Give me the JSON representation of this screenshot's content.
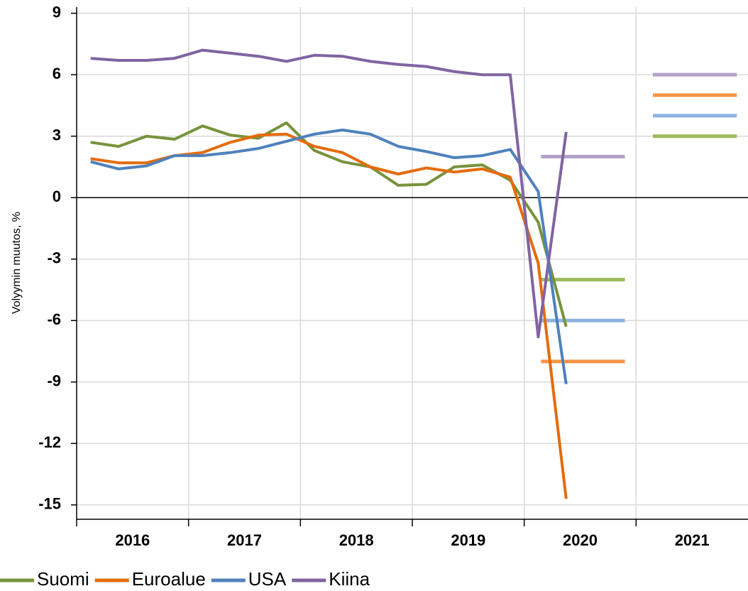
{
  "chart_data": {
    "type": "line",
    "ylabel": "Volyymin muutos, %",
    "x": [
      2016.125,
      2016.375,
      2016.625,
      2016.875,
      2017.125,
      2017.375,
      2017.625,
      2017.875,
      2018.125,
      2018.375,
      2018.625,
      2018.875,
      2019.125,
      2019.375,
      2019.625,
      2019.875,
      2020.125,
      2020.375
    ],
    "xlim": [
      2016,
      2022
    ],
    "xticks": [
      2016,
      2017,
      2018,
      2019,
      2020,
      2021
    ],
    "ylim": [
      -15.7,
      9.3
    ],
    "yticks": [
      -15,
      -12,
      -9,
      -6,
      -3,
      0,
      3,
      6,
      9
    ],
    "grid": true,
    "legend": "bottom",
    "forecast_x": [
      2020,
      2021
    ],
    "series": [
      {
        "name": "Suomi",
        "color": "#77933c",
        "forecast_color": "#9bbb59",
        "values": [
          2.7,
          2.5,
          3.0,
          2.85,
          3.5,
          3.05,
          2.9,
          3.65,
          2.3,
          1.75,
          1.5,
          0.6,
          0.65,
          1.5,
          1.6,
          0.85,
          -1.2,
          -6.3
        ],
        "forecast": [
          -4,
          3
        ]
      },
      {
        "name": "Euroalue",
        "color": "#e46c0a",
        "forecast_color": "#f79646",
        "values": [
          1.9,
          1.7,
          1.7,
          2.05,
          2.2,
          2.7,
          3.05,
          3.1,
          2.5,
          2.2,
          1.5,
          1.15,
          1.45,
          1.25,
          1.4,
          1.0,
          -3.2,
          -14.7
        ],
        "forecast": [
          -8,
          5
        ]
      },
      {
        "name": "USA",
        "color": "#4f81bd",
        "forecast_color": "#8db3e2",
        "values": [
          1.75,
          1.4,
          1.55,
          2.05,
          2.05,
          2.2,
          2.4,
          2.75,
          3.1,
          3.3,
          3.1,
          2.5,
          2.25,
          1.95,
          2.05,
          2.35,
          0.3,
          -9.1
        ],
        "forecast": [
          -6,
          4
        ]
      },
      {
        "name": "Kiina",
        "color": "#8064a2",
        "forecast_color": "#b3a2c7",
        "values": [
          6.8,
          6.7,
          6.7,
          6.8,
          7.2,
          7.05,
          6.9,
          6.65,
          6.95,
          6.9,
          6.65,
          6.5,
          6.4,
          6.15,
          6.0,
          6.0,
          -6.8,
          3.2
        ],
        "forecast": [
          2,
          6
        ]
      }
    ]
  }
}
